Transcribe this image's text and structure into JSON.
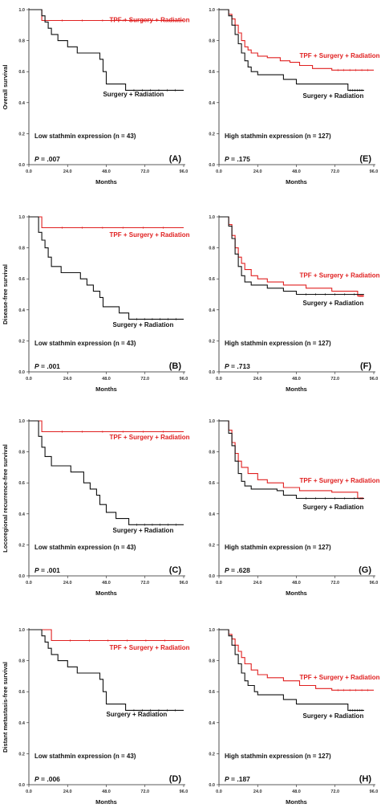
{
  "chart_data": [
    {
      "type": "line",
      "panel": "(A)",
      "ylabel": "Overall survival",
      "xlabel": "Months",
      "xticks": [
        "0.0",
        "24.0",
        "48.0",
        "72.0",
        "96.0"
      ],
      "yticks": [
        "0.0",
        "0.2",
        "0.4",
        "0.6",
        "0.8",
        "1.0"
      ],
      "xlim": [
        0,
        96
      ],
      "ylim": [
        0,
        1
      ],
      "note": "Low stathmin expression (n = 43)",
      "p_prefix": "P",
      "p_value": " = .007",
      "series": [
        {
          "name": "TPF + Surgery + Radiation",
          "color": "#e02020",
          "label_at": [
            50,
            0.92
          ],
          "steps": [
            [
              0,
              1.0
            ],
            [
              8,
              0.93
            ],
            [
              96,
              0.93
            ]
          ]
        },
        {
          "name": "Surgery + Radiation",
          "color": "#111111",
          "label_at": [
            46,
            0.44
          ],
          "steps": [
            [
              0,
              1.0
            ],
            [
              8,
              0.96
            ],
            [
              10,
              0.92
            ],
            [
              12,
              0.88
            ],
            [
              14,
              0.84
            ],
            [
              18,
              0.8
            ],
            [
              24,
              0.76
            ],
            [
              30,
              0.72
            ],
            [
              44,
              0.68
            ],
            [
              46,
              0.6
            ],
            [
              48,
              0.52
            ],
            [
              60,
              0.48
            ],
            [
              96,
              0.48
            ]
          ]
        }
      ]
    },
    {
      "type": "line",
      "panel": "(E)",
      "ylabel": "",
      "xlabel": "Months",
      "xticks": [
        "0.0",
        "24.0",
        "48.0",
        "72.0",
        "96.0"
      ],
      "yticks": [
        "0.0",
        "0.2",
        "0.4",
        "0.6",
        "0.8",
        "1.0"
      ],
      "xlim": [
        0,
        96
      ],
      "ylim": [
        0,
        1
      ],
      "note": "High stathmin expression (n = 127)",
      "p_prefix": "P",
      "p_value": " = .175",
      "series": [
        {
          "name": "TPF + Surgery + Radiation",
          "color": "#e02020",
          "label_at": [
            50,
            0.69
          ],
          "steps": [
            [
              0,
              1.0
            ],
            [
              6,
              0.97
            ],
            [
              8,
              0.94
            ],
            [
              10,
              0.9
            ],
            [
              12,
              0.85
            ],
            [
              14,
              0.8
            ],
            [
              16,
              0.76
            ],
            [
              18,
              0.74
            ],
            [
              20,
              0.72
            ],
            [
              24,
              0.7
            ],
            [
              30,
              0.69
            ],
            [
              38,
              0.67
            ],
            [
              44,
              0.66
            ],
            [
              50,
              0.64
            ],
            [
              58,
              0.62
            ],
            [
              70,
              0.61
            ],
            [
              96,
              0.61
            ]
          ]
        },
        {
          "name": "Surgery + Radiation",
          "color": "#111111",
          "label_at": [
            52,
            0.43
          ],
          "steps": [
            [
              0,
              1.0
            ],
            [
              6,
              0.96
            ],
            [
              8,
              0.9
            ],
            [
              10,
              0.84
            ],
            [
              12,
              0.78
            ],
            [
              14,
              0.72
            ],
            [
              16,
              0.67
            ],
            [
              18,
              0.63
            ],
            [
              20,
              0.6
            ],
            [
              24,
              0.58
            ],
            [
              40,
              0.55
            ],
            [
              48,
              0.52
            ],
            [
              80,
              0.48
            ],
            [
              90,
              0.48
            ]
          ]
        }
      ]
    },
    {
      "type": "line",
      "panel": "(B)",
      "ylabel": "Disease-free survival",
      "xlabel": "Months",
      "xticks": [
        "0.0",
        "24.0",
        "48.0",
        "72.0",
        "96.0"
      ],
      "yticks": [
        "0.0",
        "0.2",
        "0.4",
        "0.6",
        "0.8",
        "1.0"
      ],
      "xlim": [
        0,
        96
      ],
      "ylim": [
        0,
        1
      ],
      "note": "Low stathmin expression (n = 43)",
      "p_prefix": "P",
      "p_value": " = .001",
      "series": [
        {
          "name": "TPF + Surgery + Radiation",
          "color": "#e02020",
          "label_at": [
            50,
            0.87
          ],
          "steps": [
            [
              0,
              1.0
            ],
            [
              8,
              0.93
            ],
            [
              96,
              0.93
            ]
          ]
        },
        {
          "name": "Surgery + Radiation",
          "color": "#111111",
          "label_at": [
            52,
            0.29
          ],
          "steps": [
            [
              0,
              1.0
            ],
            [
              6,
              0.9
            ],
            [
              8,
              0.85
            ],
            [
              10,
              0.8
            ],
            [
              12,
              0.74
            ],
            [
              14,
              0.68
            ],
            [
              20,
              0.64
            ],
            [
              32,
              0.6
            ],
            [
              36,
              0.56
            ],
            [
              40,
              0.52
            ],
            [
              44,
              0.48
            ],
            [
              46,
              0.42
            ],
            [
              56,
              0.38
            ],
            [
              62,
              0.34
            ],
            [
              96,
              0.34
            ]
          ]
        }
      ]
    },
    {
      "type": "line",
      "panel": "(F)",
      "ylabel": "",
      "xlabel": "Months",
      "xticks": [
        "0.0",
        "24.0",
        "48.0",
        "72.0",
        "96.0"
      ],
      "yticks": [
        "0.0",
        "0.2",
        "0.4",
        "0.6",
        "0.8",
        "1.0"
      ],
      "xlim": [
        0,
        96
      ],
      "ylim": [
        0,
        1
      ],
      "note": "High stathmin expression (n = 127)",
      "p_prefix": "P",
      "p_value": " = .713",
      "series": [
        {
          "name": "TPF + Surgery + Radiation",
          "color": "#e02020",
          "label_at": [
            50,
            0.61
          ],
          "steps": [
            [
              0,
              1.0
            ],
            [
              6,
              0.95
            ],
            [
              8,
              0.88
            ],
            [
              10,
              0.8
            ],
            [
              12,
              0.74
            ],
            [
              14,
              0.7
            ],
            [
              16,
              0.66
            ],
            [
              20,
              0.62
            ],
            [
              24,
              0.6
            ],
            [
              30,
              0.58
            ],
            [
              40,
              0.56
            ],
            [
              54,
              0.54
            ],
            [
              70,
              0.52
            ],
            [
              86,
              0.49
            ],
            [
              90,
              0.49
            ]
          ]
        },
        {
          "name": "Surgery + Radiation",
          "color": "#111111",
          "label_at": [
            52,
            0.43
          ],
          "steps": [
            [
              0,
              1.0
            ],
            [
              6,
              0.94
            ],
            [
              8,
              0.86
            ],
            [
              10,
              0.76
            ],
            [
              12,
              0.68
            ],
            [
              14,
              0.62
            ],
            [
              16,
              0.58
            ],
            [
              20,
              0.56
            ],
            [
              30,
              0.54
            ],
            [
              40,
              0.52
            ],
            [
              48,
              0.5
            ],
            [
              90,
              0.5
            ]
          ]
        }
      ]
    },
    {
      "type": "line",
      "panel": "(C)",
      "ylabel": "Locoregional recurrence-free survival",
      "xlabel": "Months",
      "xticks": [
        "0.0",
        "24.0",
        "48.0",
        "72.0",
        "96.0"
      ],
      "yticks": [
        "0.0",
        "0.2",
        "0.4",
        "0.6",
        "0.8",
        "1.0"
      ],
      "xlim": [
        0,
        96
      ],
      "ylim": [
        0,
        1
      ],
      "note": "Low stathmin expression (n = 43)",
      "p_prefix": "P",
      "p_value": " = .001",
      "series": [
        {
          "name": "TPF + Surgery + Radiation",
          "color": "#e02020",
          "label_at": [
            50,
            0.88
          ],
          "steps": [
            [
              0,
              1.0
            ],
            [
              8,
              0.93
            ],
            [
              96,
              0.93
            ]
          ]
        },
        {
          "name": "Surgery + Radiation",
          "color": "#111111",
          "label_at": [
            52,
            0.28
          ],
          "steps": [
            [
              0,
              1.0
            ],
            [
              6,
              0.9
            ],
            [
              8,
              0.83
            ],
            [
              10,
              0.77
            ],
            [
              14,
              0.71
            ],
            [
              26,
              0.67
            ],
            [
              34,
              0.6
            ],
            [
              38,
              0.56
            ],
            [
              42,
              0.52
            ],
            [
              44,
              0.46
            ],
            [
              48,
              0.41
            ],
            [
              54,
              0.37
            ],
            [
              62,
              0.33
            ],
            [
              96,
              0.33
            ]
          ]
        }
      ]
    },
    {
      "type": "line",
      "panel": "(G)",
      "ylabel": "",
      "xlabel": "Months",
      "xticks": [
        "0.0",
        "24.0",
        "48.0",
        "72.0",
        "96.0"
      ],
      "yticks": [
        "0.0",
        "0.2",
        "0.4",
        "0.6",
        "0.8",
        "1.0"
      ],
      "xlim": [
        0,
        96
      ],
      "ylim": [
        0,
        1
      ],
      "note": "High stathmin expression (n = 127)",
      "p_prefix": "P",
      "p_value": " = .628",
      "series": [
        {
          "name": "TPF + Surgery + Radiation",
          "color": "#e02020",
          "label_at": [
            50,
            0.6
          ],
          "steps": [
            [
              0,
              1.0
            ],
            [
              6,
              0.94
            ],
            [
              8,
              0.86
            ],
            [
              10,
              0.79
            ],
            [
              12,
              0.74
            ],
            [
              14,
              0.7
            ],
            [
              18,
              0.66
            ],
            [
              24,
              0.62
            ],
            [
              30,
              0.6
            ],
            [
              40,
              0.57
            ],
            [
              50,
              0.55
            ],
            [
              70,
              0.54
            ],
            [
              86,
              0.5
            ],
            [
              90,
              0.5
            ]
          ]
        },
        {
          "name": "Surgery + Radiation",
          "color": "#111111",
          "label_at": [
            52,
            0.43
          ],
          "steps": [
            [
              0,
              1.0
            ],
            [
              6,
              0.92
            ],
            [
              8,
              0.84
            ],
            [
              10,
              0.74
            ],
            [
              12,
              0.66
            ],
            [
              14,
              0.61
            ],
            [
              16,
              0.58
            ],
            [
              20,
              0.56
            ],
            [
              36,
              0.55
            ],
            [
              40,
              0.52
            ],
            [
              48,
              0.5
            ],
            [
              90,
              0.5
            ]
          ]
        }
      ]
    },
    {
      "type": "line",
      "panel": "(D)",
      "ylabel": "Distant metastasis-free survival",
      "xlabel": "Months",
      "xticks": [
        "0.0",
        "24.0",
        "48.0",
        "72.0",
        "96.0"
      ],
      "yticks": [
        "0.0",
        "0.2",
        "0.4",
        "0.6",
        "0.8",
        "1.0"
      ],
      "xlim": [
        0,
        96
      ],
      "ylim": [
        0,
        1
      ],
      "note": "Low stathmin expression (n = 43)",
      "p_prefix": "P",
      "p_value": " = .006",
      "series": [
        {
          "name": "TPF + Surgery + Radiation",
          "color": "#e02020",
          "label_at": [
            50,
            0.87
          ],
          "steps": [
            [
              0,
              1.0
            ],
            [
              14,
              0.93
            ],
            [
              96,
              0.93
            ]
          ]
        },
        {
          "name": "Surgery + Radiation",
          "color": "#111111",
          "label_at": [
            48,
            0.44
          ],
          "steps": [
            [
              0,
              1.0
            ],
            [
              8,
              0.96
            ],
            [
              10,
              0.92
            ],
            [
              12,
              0.88
            ],
            [
              14,
              0.84
            ],
            [
              18,
              0.8
            ],
            [
              24,
              0.76
            ],
            [
              30,
              0.72
            ],
            [
              44,
              0.68
            ],
            [
              46,
              0.6
            ],
            [
              48,
              0.52
            ],
            [
              60,
              0.48
            ],
            [
              96,
              0.48
            ]
          ]
        }
      ]
    },
    {
      "type": "line",
      "panel": "(H)",
      "ylabel": "",
      "xlabel": "Months",
      "xticks": [
        "0.0",
        "24.0",
        "48.0",
        "72.0",
        "96.0"
      ],
      "yticks": [
        "0.0",
        "0.2",
        "0.4",
        "0.6",
        "0.8",
        "1.0"
      ],
      "xlim": [
        0,
        96
      ],
      "ylim": [
        0,
        1
      ],
      "note": "High stathmin expression (n = 127)",
      "p_prefix": "P",
      "p_value": " = .187",
      "series": [
        {
          "name": "TPF + Surgery + Radiation",
          "color": "#e02020",
          "label_at": [
            50,
            0.68
          ],
          "steps": [
            [
              0,
              1.0
            ],
            [
              6,
              0.97
            ],
            [
              8,
              0.94
            ],
            [
              10,
              0.9
            ],
            [
              12,
              0.86
            ],
            [
              14,
              0.82
            ],
            [
              16,
              0.78
            ],
            [
              20,
              0.74
            ],
            [
              24,
              0.71
            ],
            [
              30,
              0.69
            ],
            [
              40,
              0.67
            ],
            [
              50,
              0.64
            ],
            [
              60,
              0.62
            ],
            [
              70,
              0.61
            ],
            [
              96,
              0.61
            ]
          ]
        },
        {
          "name": "Surgery + Radiation",
          "color": "#111111",
          "label_at": [
            52,
            0.43
          ],
          "steps": [
            [
              0,
              1.0
            ],
            [
              6,
              0.96
            ],
            [
              8,
              0.9
            ],
            [
              10,
              0.84
            ],
            [
              12,
              0.78
            ],
            [
              14,
              0.72
            ],
            [
              16,
              0.67
            ],
            [
              18,
              0.64
            ],
            [
              22,
              0.6
            ],
            [
              24,
              0.58
            ],
            [
              40,
              0.55
            ],
            [
              48,
              0.52
            ],
            [
              80,
              0.48
            ],
            [
              90,
              0.48
            ]
          ]
        }
      ]
    }
  ]
}
